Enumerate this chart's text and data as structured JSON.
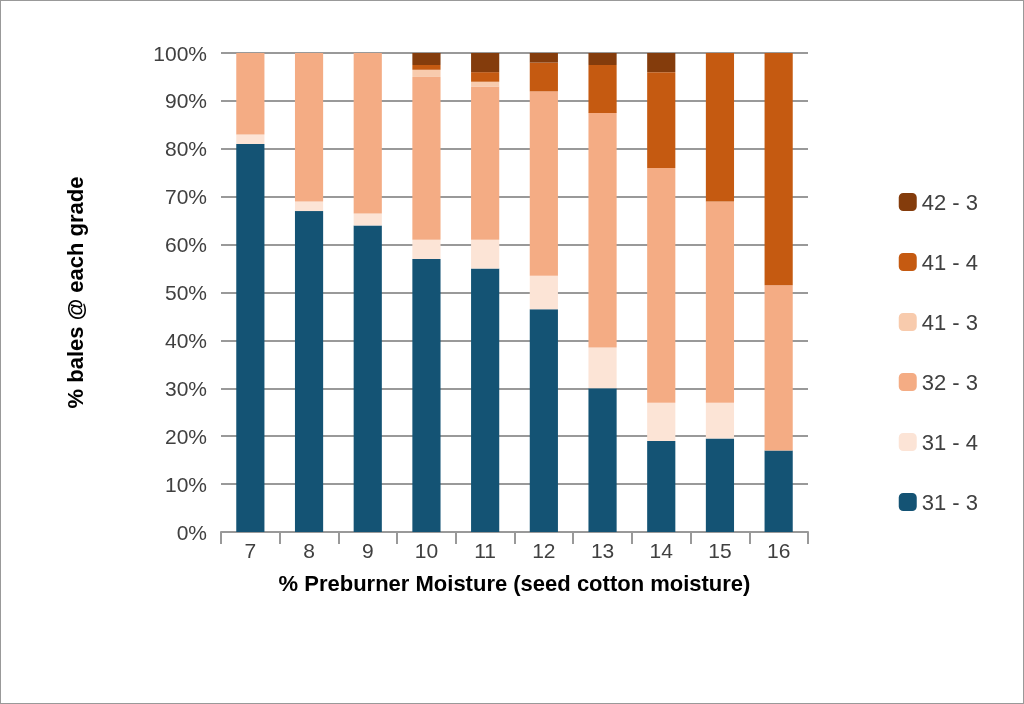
{
  "chart_data": {
    "type": "bar",
    "stacked": true,
    "xlabel": "% Preburner Moisture (seed cotton moisture)",
    "ylabel": "% bales @ each grade",
    "categories": [
      "7",
      "8",
      "9",
      "10",
      "11",
      "12",
      "13",
      "14",
      "15",
      "16"
    ],
    "series": [
      {
        "name": "31 - 3",
        "color": "#145374",
        "values": [
          81,
          67,
          64,
          57,
          55,
          46.5,
          30,
          19,
          19.5,
          17
        ]
      },
      {
        "name": "31 - 4",
        "color": "#fce4d6",
        "values": [
          2,
          2,
          2.5,
          4,
          6,
          7,
          8.5,
          8,
          7.5,
          0
        ]
      },
      {
        "name": "32 - 3",
        "color": "#f4ac84",
        "values": [
          17,
          31,
          33.5,
          34,
          32,
          38.5,
          49,
          49,
          42,
          34.5
        ]
      },
      {
        "name": "41 - 3",
        "color": "#f8cbad",
        "values": [
          0,
          0,
          0,
          1.5,
          1,
          0,
          0,
          0,
          0,
          0
        ]
      },
      {
        "name": "41 - 4",
        "color": "#c55a11",
        "values": [
          0,
          0,
          0,
          1,
          2,
          6,
          10,
          20,
          31,
          48.5
        ]
      },
      {
        "name": "42 - 3",
        "color": "#843c0c",
        "values": [
          0,
          0,
          0,
          2.5,
          4,
          2,
          2.5,
          4,
          0,
          0
        ]
      }
    ],
    "ylim": [
      0,
      100
    ],
    "yticks": [
      {
        "value": 0,
        "label": "0%"
      },
      {
        "value": 10,
        "label": "10%"
      },
      {
        "value": 20,
        "label": "20%"
      },
      {
        "value": 30,
        "label": "30%"
      },
      {
        "value": 40,
        "label": "40%"
      },
      {
        "value": 50,
        "label": "50%"
      },
      {
        "value": 60,
        "label": "60%"
      },
      {
        "value": 70,
        "label": "70%"
      },
      {
        "value": 80,
        "label": "80%"
      },
      {
        "value": 90,
        "label": "90%"
      },
      {
        "value": 100,
        "label": "100%"
      }
    ],
    "grid": "y",
    "legend": "right"
  }
}
